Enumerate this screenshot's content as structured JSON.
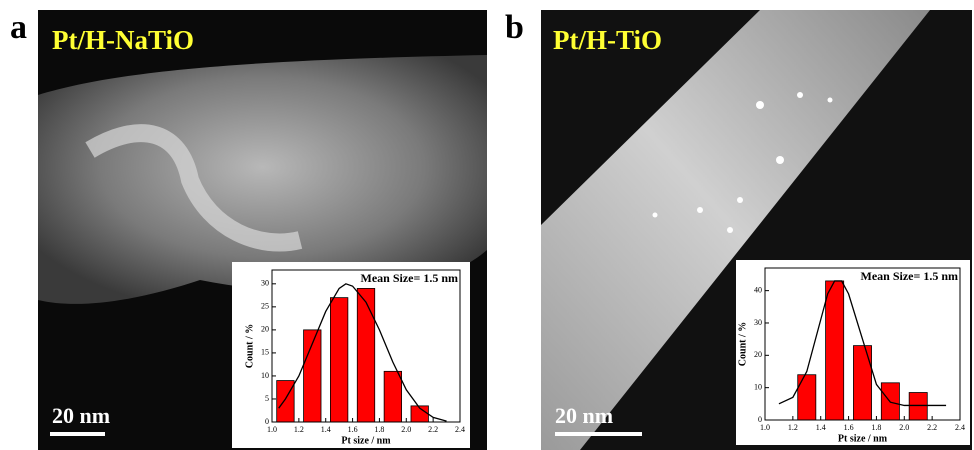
{
  "panels": [
    {
      "label": "a",
      "title": "Pt/H-NaTiO",
      "scale_bar": "20 nm"
    },
    {
      "label": "b",
      "title": "Pt/H-TiO",
      "scale_bar": "20 nm"
    }
  ],
  "chart_data": [
    {
      "type": "bar",
      "annotation": "Mean Size= 1.5 nm",
      "xlabel": "Pt size / nm",
      "ylabel": "Count / %",
      "x": [
        1.1,
        1.3,
        1.5,
        1.7,
        1.9,
        2.1
      ],
      "values": [
        9,
        20,
        27,
        29,
        11,
        3.5
      ],
      "color": "#ff0000",
      "xlim": [
        1.0,
        2.4
      ],
      "xticks": [
        {
          "value": 1,
          "label": "1.0"
        },
        1.2,
        1.4,
        1.6,
        1.8,
        {
          "value": 2,
          "label": "2.0"
        },
        2.2,
        2.4
      ],
      "ylim": [
        0,
        33
      ],
      "yticks": [
        0,
        5,
        10,
        15,
        20,
        25,
        30
      ],
      "fit": {
        "x": [
          1.05,
          1.1,
          1.2,
          1.3,
          1.4,
          1.5,
          1.55,
          1.6,
          1.7,
          1.8,
          1.9,
          2.0,
          2.1,
          2.2,
          2.3
        ],
        "y": [
          3,
          5,
          10,
          17,
          24,
          29,
          30,
          29.5,
          26,
          20,
          13,
          7,
          3,
          1,
          0.2
        ]
      }
    },
    {
      "type": "bar",
      "annotation": "Mean Size= 1.5 nm",
      "xlabel": "Pt size / nm",
      "ylabel": "Count / %",
      "x": [
        1.3,
        1.5,
        1.7,
        1.9,
        2.1
      ],
      "values": [
        14,
        43,
        23,
        11.5,
        8.5
      ],
      "color": "#ff0000",
      "xlim": [
        1.0,
        2.4
      ],
      "xticks": [
        {
          "value": 1,
          "label": "1.0"
        },
        1.2,
        1.4,
        1.6,
        1.8,
        {
          "value": 2,
          "label": "2.0"
        },
        2.2,
        2.4
      ],
      "ylim": [
        0,
        47
      ],
      "yticks": [
        0,
        10,
        20,
        30,
        40
      ],
      "fit": {
        "x": [
          1.1,
          1.2,
          1.3,
          1.4,
          1.45,
          1.5,
          1.55,
          1.6,
          1.7,
          1.8,
          1.9,
          2.0,
          2.1,
          2.2,
          2.3
        ],
        "y": [
          5,
          7,
          15,
          31,
          39,
          43,
          43,
          39,
          25,
          11,
          5.5,
          4.5,
          4.5,
          4.5,
          4.5
        ]
      }
    }
  ]
}
